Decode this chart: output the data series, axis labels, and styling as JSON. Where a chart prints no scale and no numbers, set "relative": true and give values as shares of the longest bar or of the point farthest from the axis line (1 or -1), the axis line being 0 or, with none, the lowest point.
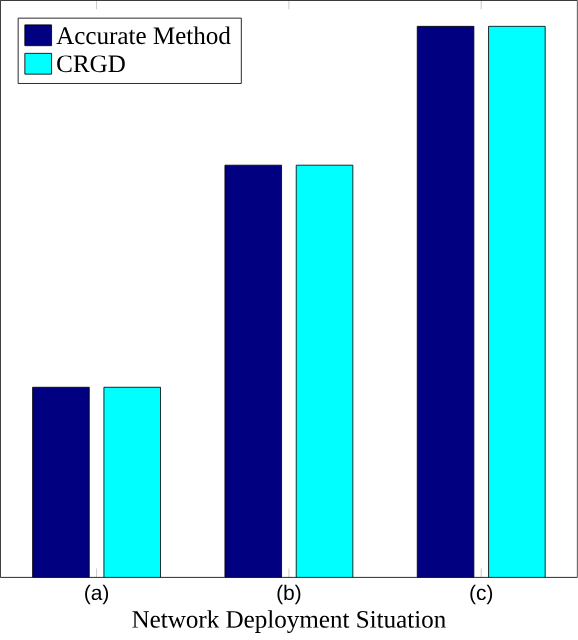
{
  "chart_data": {
    "type": "bar",
    "relative": true,
    "categories": [
      "(a)",
      "(b)",
      "(c)"
    ],
    "xlabel": "Network Deployment Situation",
    "legend": "top left",
    "series": [
      {
        "name": "Accurate Method",
        "color": "#000080",
        "values": [
          0.345,
          0.748,
          1
        ]
      },
      {
        "name": "CRGD",
        "color": "#00ffff",
        "values": [
          0.345,
          0.748,
          1
        ]
      }
    ]
  }
}
